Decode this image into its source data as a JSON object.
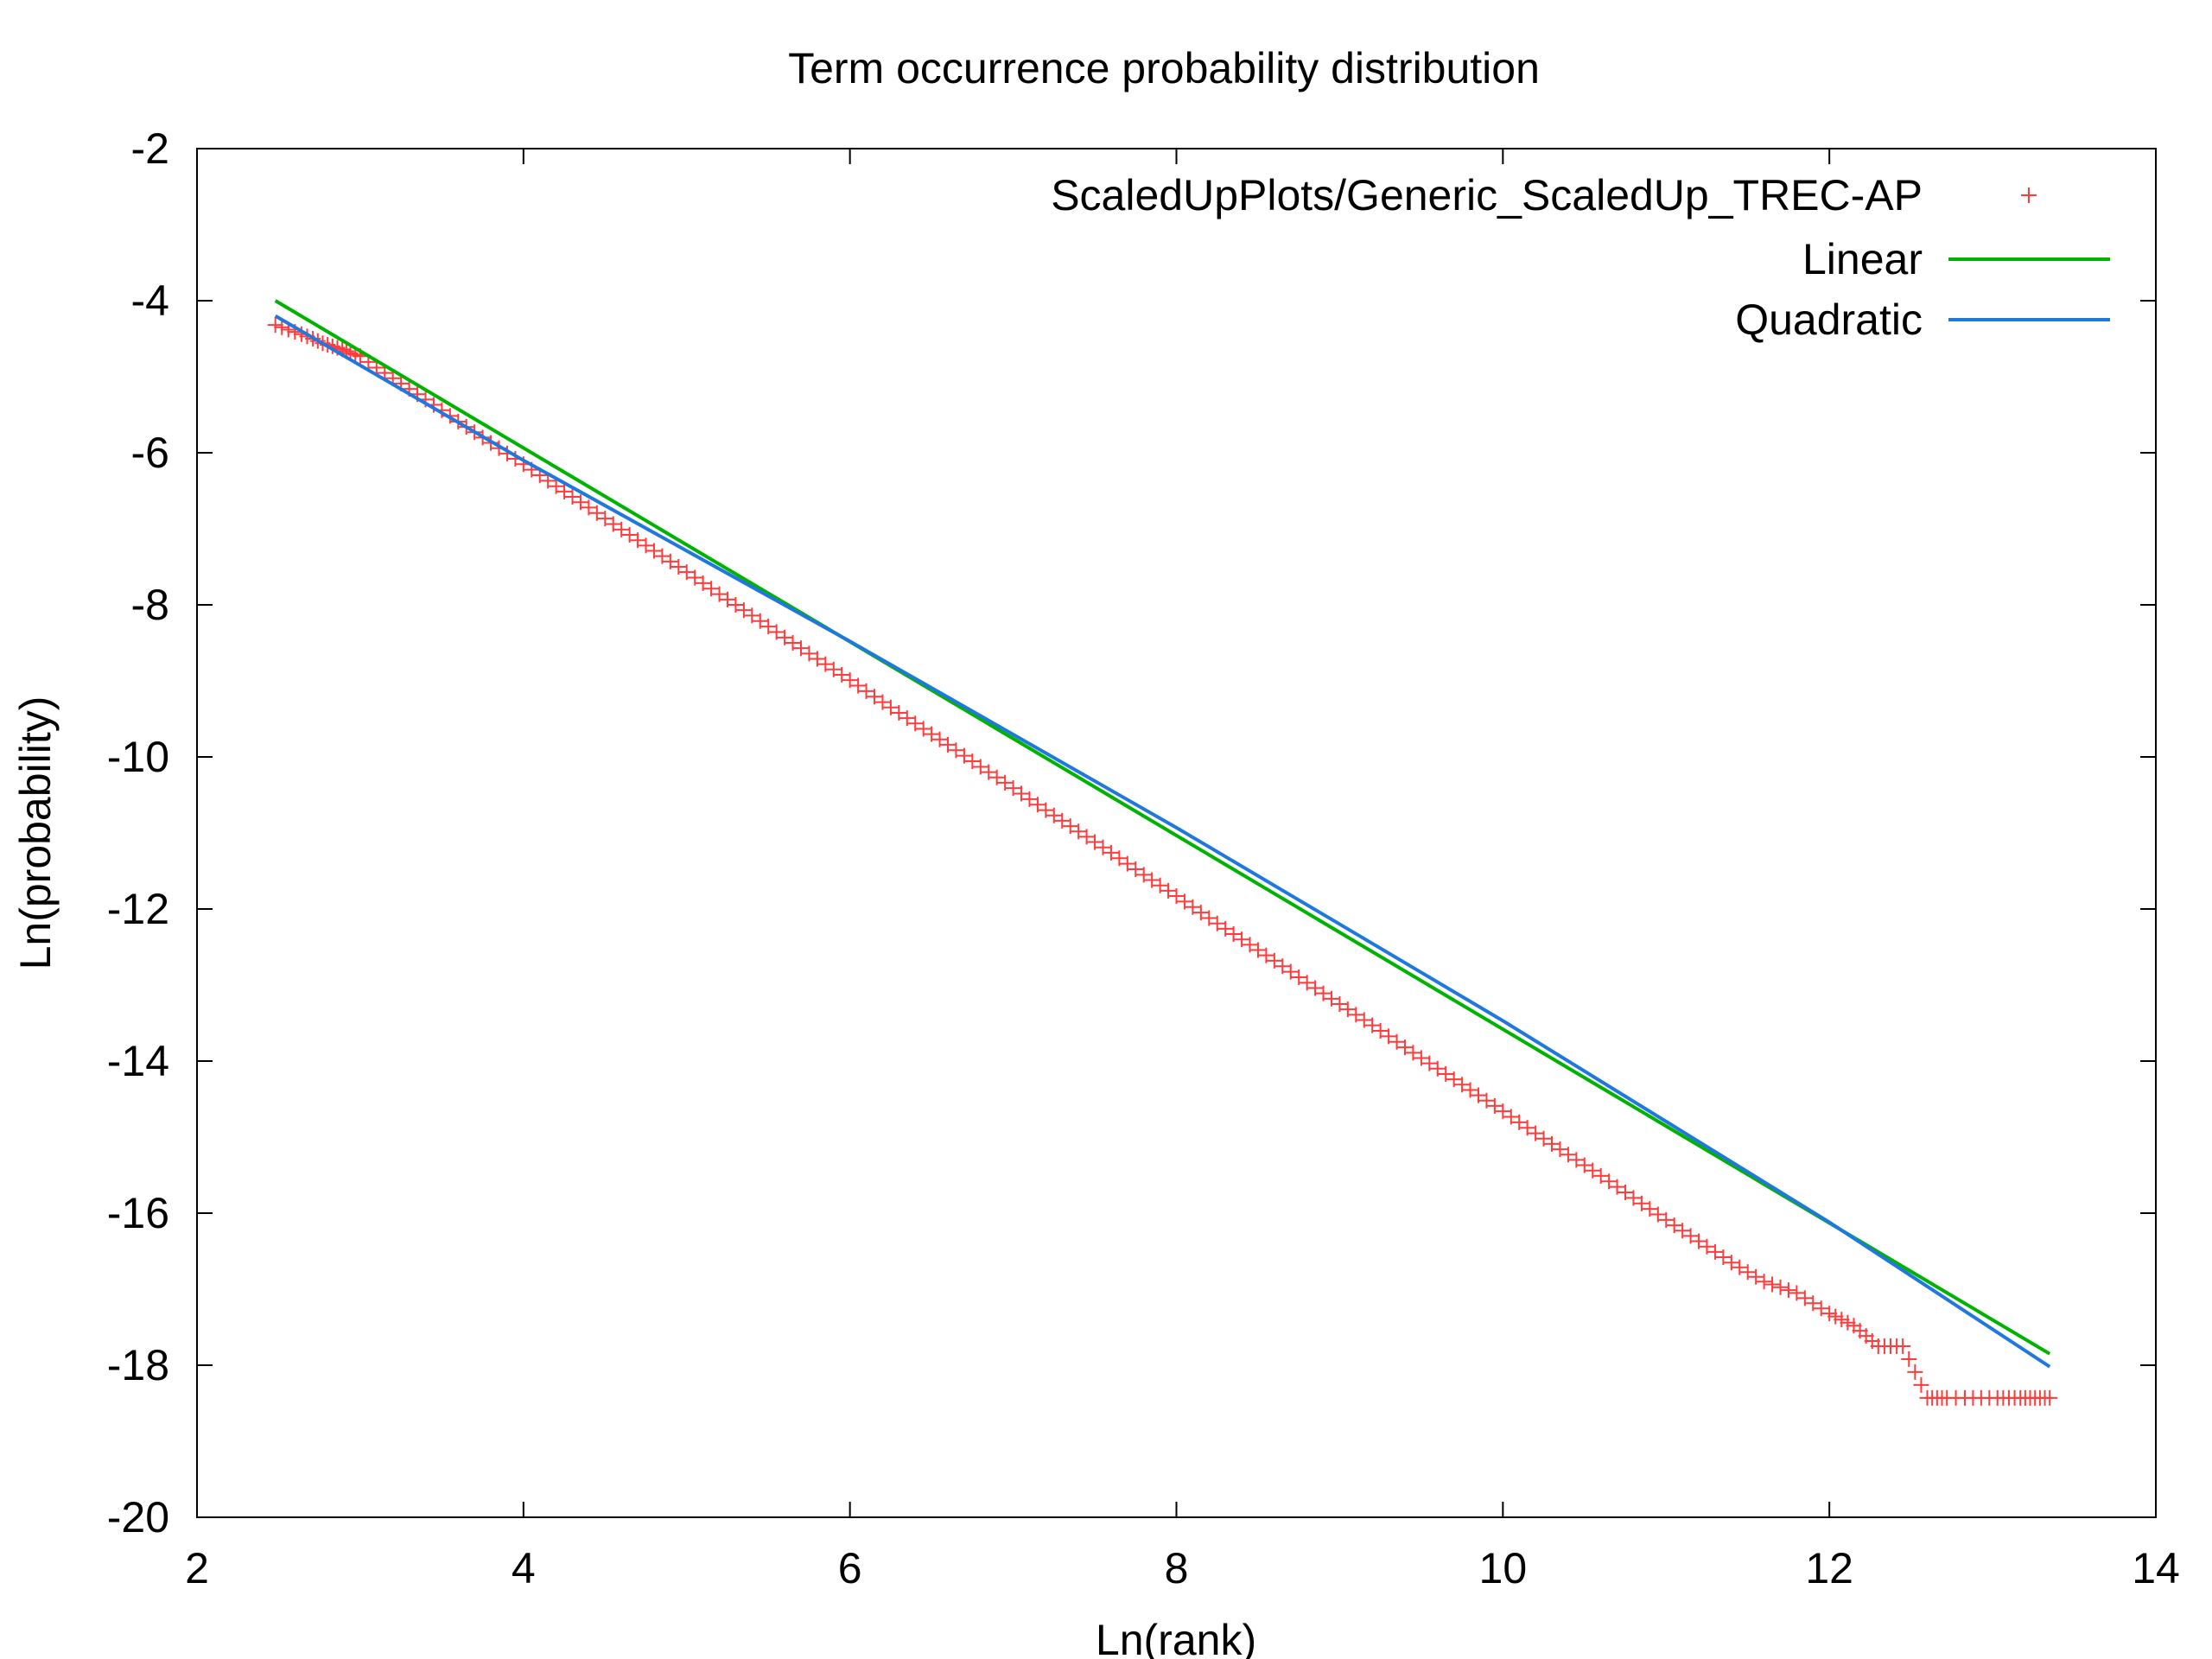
{
  "chart_data": {
    "type": "scatter",
    "title": "Term occurrence probability distribution",
    "xlabel": "Ln(rank)",
    "ylabel": "Ln(probability)",
    "xlim": [
      2,
      14
    ],
    "ylim": [
      -20,
      -2
    ],
    "xticks": [
      2,
      4,
      6,
      8,
      10,
      12,
      14
    ],
    "yticks": [
      -2,
      -4,
      -6,
      -8,
      -10,
      -12,
      -14,
      -16,
      -18,
      -20
    ],
    "grid": false,
    "legend_position": "top-right",
    "series": [
      {
        "name": "ScaledUpPlots/Generic_ScaledUp_TREC-AP",
        "kind": "points",
        "marker": "+",
        "color": "#ff3b3b",
        "x": [
          2.48,
          2.56,
          2.64,
          2.71,
          2.77,
          2.83,
          2.89,
          2.94,
          3.0,
          3.1,
          3.2,
          3.3,
          3.4,
          3.5,
          3.6,
          3.7,
          3.8,
          3.9,
          4.0,
          4.2,
          4.4,
          4.6,
          4.8,
          5.0,
          5.2,
          5.4,
          5.6,
          5.8,
          6.0,
          6.2,
          6.4,
          6.6,
          6.8,
          7.0,
          7.2,
          7.4,
          7.6,
          7.8,
          8.0,
          8.2,
          8.4,
          8.6,
          8.8,
          9.0,
          9.2,
          9.4,
          9.6,
          9.8,
          10.0,
          10.2,
          10.4,
          10.6,
          10.8,
          11.0,
          11.2,
          11.4,
          11.6,
          11.8,
          12.0,
          12.15,
          12.3,
          12.45,
          12.6,
          12.72,
          12.83,
          12.93,
          13.03,
          13.1,
          13.17,
          13.23,
          13.29,
          13.35
        ],
        "y": [
          -4.32,
          -4.38,
          -4.44,
          -4.5,
          -4.56,
          -4.6,
          -4.64,
          -4.69,
          -4.73,
          -4.88,
          -5.02,
          -5.16,
          -5.3,
          -5.44,
          -5.59,
          -5.73,
          -5.87,
          -6.01,
          -6.15,
          -6.44,
          -6.72,
          -7.01,
          -7.29,
          -7.57,
          -7.86,
          -8.14,
          -8.43,
          -8.71,
          -8.99,
          -9.28,
          -9.56,
          -9.84,
          -10.13,
          -10.41,
          -10.7,
          -10.98,
          -11.26,
          -11.55,
          -11.83,
          -12.12,
          -12.4,
          -12.68,
          -12.97,
          -13.25,
          -13.53,
          -13.82,
          -14.1,
          -14.38,
          -14.66,
          -14.95,
          -15.23,
          -15.51,
          -15.8,
          -16.09,
          -16.37,
          -16.65,
          -16.9,
          -17.05,
          -17.32,
          -17.48,
          -17.75,
          -17.75,
          -18.43,
          -18.43,
          -18.43,
          -18.43,
          -18.43,
          -18.43,
          -18.43,
          -18.43,
          -18.43,
          -18.43
        ]
      },
      {
        "name": "Linear",
        "kind": "line",
        "color": "#00b300",
        "x": [
          2.48,
          13.35
        ],
        "y": [
          -4.0,
          -17.85
        ]
      },
      {
        "name": "Quadratic",
        "kind": "line",
        "color": "#1f77e0",
        "x": [
          2.48,
          4.0,
          6.0,
          8.0,
          10.0,
          12.0,
          13.35
        ],
        "y": [
          -4.2,
          -6.1,
          -8.48,
          -10.93,
          -13.47,
          -16.12,
          -18.02
        ]
      }
    ]
  }
}
